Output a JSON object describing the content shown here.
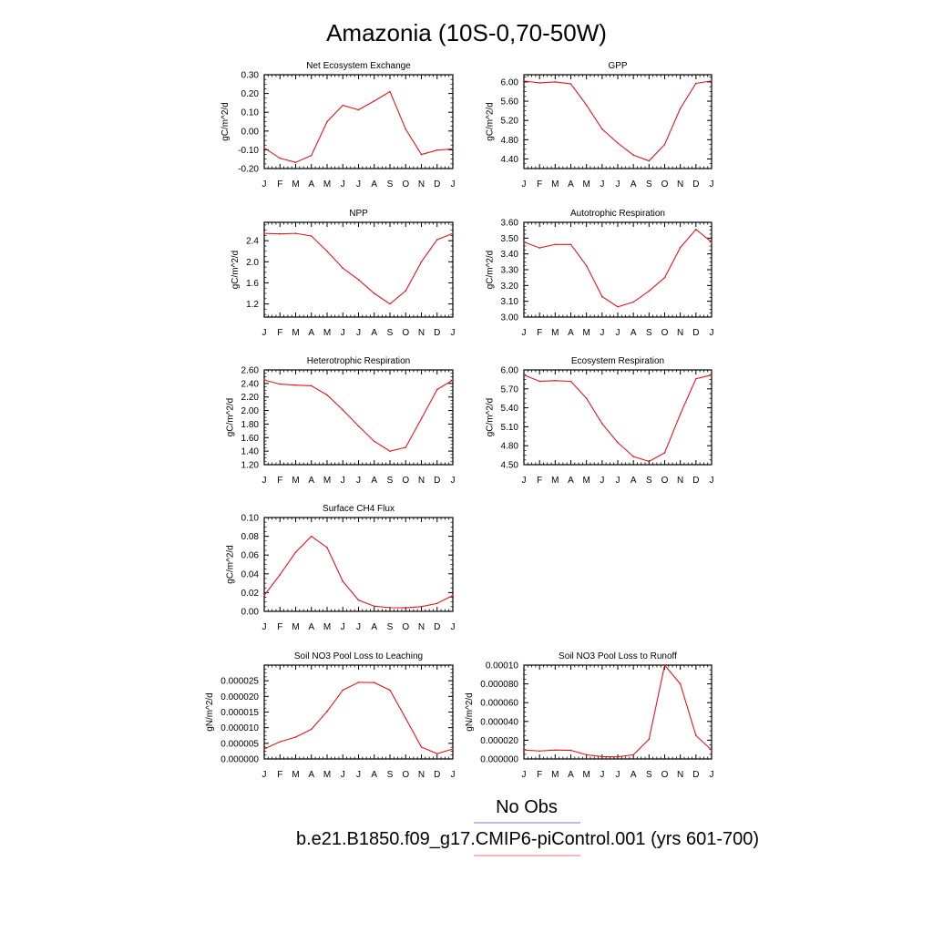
{
  "title": "Amazonia (10S-0,70-50W)",
  "months": [
    "J",
    "F",
    "M",
    "A",
    "M",
    "J",
    "J",
    "A",
    "S",
    "O",
    "N",
    "D",
    "J"
  ],
  "line_color": "#e8141b",
  "legend": {
    "obs_label": "No Obs",
    "obs_color": "#7a7ae8",
    "model_label": "b.e21.B1850.f09_g17.CMIP6-piControl.001 (yrs 601-700)",
    "model_color": "#f07070"
  },
  "chart_data": [
    {
      "type": "line",
      "title": "Net Ecosystem Exchange",
      "ylabel": "gC/m^2/d",
      "ylim": [
        -0.2,
        0.3
      ],
      "yticks": [
        "0.30",
        "0.20",
        "0.10",
        "0.00",
        "-0.10",
        "-0.20"
      ],
      "ytick_values": [
        0.3,
        0.2,
        0.1,
        0.0,
        -0.1,
        -0.2
      ],
      "values": [
        -0.09,
        -0.145,
        -0.167,
        -0.13,
        0.05,
        0.137,
        0.113,
        0.16,
        0.21,
        0.01,
        -0.125,
        -0.102,
        -0.095
      ]
    },
    {
      "type": "line",
      "title": "GPP",
      "ylabel": "gC/m^2/d",
      "ylim": [
        4.2,
        6.15
      ],
      "yticks": [
        "6.00",
        "5.60",
        "5.20",
        "4.80",
        "4.40"
      ],
      "ytick_values": [
        6.0,
        5.6,
        5.2,
        4.8,
        4.4
      ],
      "values": [
        6.02,
        5.98,
        6.0,
        5.96,
        5.52,
        5.02,
        4.73,
        4.48,
        4.36,
        4.7,
        5.45,
        5.97,
        6.02
      ]
    },
    {
      "type": "line",
      "title": "NPP",
      "ylabel": "gC/m^2/d",
      "ylim": [
        0.95,
        2.75
      ],
      "yticks": [
        "2.4",
        "2.0",
        "1.6",
        "1.2"
      ],
      "ytick_values": [
        2.4,
        2.0,
        1.6,
        1.2
      ],
      "values": [
        2.54,
        2.53,
        2.54,
        2.49,
        2.2,
        1.88,
        1.66,
        1.4,
        1.2,
        1.45,
        2.0,
        2.42,
        2.54
      ]
    },
    {
      "type": "line",
      "title": "Autotrophic Respiration",
      "ylabel": "gC/m^2/d",
      "ylim": [
        3.0,
        3.6
      ],
      "yticks": [
        "3.60",
        "3.50",
        "3.40",
        "3.30",
        "3.20",
        "3.10",
        "3.00"
      ],
      "ytick_values": [
        3.6,
        3.5,
        3.4,
        3.3,
        3.2,
        3.1,
        3.0
      ],
      "values": [
        3.475,
        3.438,
        3.46,
        3.46,
        3.325,
        3.13,
        3.065,
        3.095,
        3.165,
        3.25,
        3.44,
        3.555,
        3.475
      ]
    },
    {
      "type": "line",
      "title": "Heterotrophic Respiration",
      "ylabel": "gC/m^2/d",
      "ylim": [
        1.2,
        2.6
      ],
      "yticks": [
        "2.60",
        "2.40",
        "2.20",
        "2.00",
        "1.80",
        "1.60",
        "1.40",
        "1.20"
      ],
      "ytick_values": [
        2.6,
        2.4,
        2.2,
        2.0,
        1.8,
        1.6,
        1.4,
        1.2
      ],
      "values": [
        2.45,
        2.39,
        2.375,
        2.365,
        2.23,
        2.01,
        1.77,
        1.545,
        1.4,
        1.455,
        1.88,
        2.31,
        2.45
      ]
    },
    {
      "type": "line",
      "title": "Ecosystem Respiration",
      "ylabel": "gC/m^2/d",
      "ylim": [
        4.5,
        6.0
      ],
      "yticks": [
        "6.00",
        "5.70",
        "5.40",
        "5.10",
        "4.80",
        "4.50"
      ],
      "ytick_values": [
        6.0,
        5.7,
        5.4,
        5.1,
        4.8,
        4.5
      ],
      "values": [
        5.92,
        5.82,
        5.83,
        5.82,
        5.55,
        5.15,
        4.85,
        4.63,
        4.55,
        4.69,
        5.3,
        5.86,
        5.92
      ]
    },
    {
      "type": "line",
      "title": "Surface CH4 Flux",
      "ylabel": "gC/m^2/d",
      "ylim": [
        0.0,
        0.1
      ],
      "yticks": [
        "0.10",
        "0.08",
        "0.06",
        "0.04",
        "0.02",
        "0.00"
      ],
      "ytick_values": [
        0.1,
        0.08,
        0.06,
        0.04,
        0.02,
        0.0
      ],
      "values": [
        0.017,
        0.039,
        0.063,
        0.08,
        0.068,
        0.032,
        0.012,
        0.0055,
        0.004,
        0.0038,
        0.005,
        0.0085,
        0.017
      ]
    },
    {
      "type": "line",
      "title": "Soil NO3 Pool Loss to Leaching",
      "ylabel": "gN/m^2/d",
      "ylim": [
        0.0,
        3e-05
      ],
      "yticks": [
        "0.000025",
        "0.000020",
        "0.000015",
        "0.000010",
        "0.000005",
        "0.000000"
      ],
      "ytick_values": [
        2.5e-05,
        2e-05,
        1.5e-05,
        1e-05,
        5e-06,
        0.0
      ],
      "values": [
        3.2e-06,
        5.5e-06,
        7e-06,
        9.5e-06,
        1.52e-05,
        2.2e-05,
        2.45e-05,
        2.44e-05,
        2.2e-05,
        1.3e-05,
        3.8e-06,
        1.7e-06,
        3.2e-06
      ]
    },
    {
      "type": "line",
      "title": "Soil NO3 Pool Loss to Runoff",
      "ylabel": "gN/m^2/d",
      "ylim": [
        0.0,
        0.0001
      ],
      "yticks": [
        "0.00010",
        "0.000080",
        "0.000060",
        "0.000040",
        "0.000020",
        "0.000000"
      ],
      "ytick_values": [
        0.0001,
        8e-05,
        6e-05,
        4e-05,
        2e-05,
        0.0
      ],
      "values": [
        9.5e-06,
        8.5e-06,
        9.5e-06,
        9.2e-06,
        4.5e-06,
        2.5e-06,
        2.2e-06,
        4.5e-06,
        2.1e-05,
        0.0001,
        8e-05,
        2.5e-05,
        9.5e-06
      ]
    }
  ]
}
